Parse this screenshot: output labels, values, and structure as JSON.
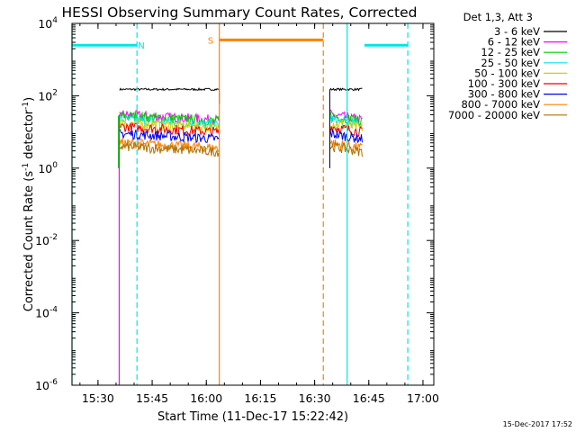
{
  "chart_data": {
    "type": "line",
    "title": "HESSI Observing Summary Count Rates, Corrected",
    "xlabel": "Start Time (11-Dec-17 15:22:42)",
    "ylabel_main": "Corrected Count Rate (s",
    "ylabel_sup1": "-1",
    "ylabel_mid": " detector",
    "ylabel_sup2": "-1",
    "ylabel_end": ")",
    "x_range_minutes": [
      15.38,
      17.05
    ],
    "x_ticks": [
      {
        "t": 15.5,
        "label": "15:30"
      },
      {
        "t": 15.75,
        "label": "15:45"
      },
      {
        "t": 16.0,
        "label": "16:00"
      },
      {
        "t": 16.25,
        "label": "16:15"
      },
      {
        "t": 16.5,
        "label": "16:30"
      },
      {
        "t": 16.75,
        "label": "16:45"
      },
      {
        "t": 17.0,
        "label": "17:00"
      }
    ],
    "y_scale": "log",
    "y_range": [
      1e-06,
      10000.0
    ],
    "y_ticks": [
      {
        "exp": -6,
        "label_base": "10",
        "label_exp": "-6"
      },
      {
        "exp": -4,
        "label_base": "10",
        "label_exp": "-4"
      },
      {
        "exp": -2,
        "label_base": "10",
        "label_exp": "-2"
      },
      {
        "exp": 0,
        "label_base": "10",
        "label_exp": "0"
      },
      {
        "exp": 2,
        "label_base": "10",
        "label_exp": "2"
      },
      {
        "exp": 4,
        "label_base": "10",
        "label_exp": "4"
      }
    ],
    "legend_title": "Det 1,3, Att 3",
    "legend_position": "top-right, outside plot",
    "series": [
      {
        "name": "3 - 6 keV",
        "color": "#000000",
        "level": 150
      },
      {
        "name": "6 - 12 keV",
        "color": "#ff00ff",
        "level": 30
      },
      {
        "name": "12 - 25 keV",
        "color": "#00cc00",
        "level": 28
      },
      {
        "name": "25 - 50 keV",
        "color": "#00e5e5",
        "level": 22
      },
      {
        "name": "50 - 100 keV",
        "color": "#ddcc00",
        "level": 18
      },
      {
        "name": "100 - 300 keV",
        "color": "#ee0000",
        "level": 14
      },
      {
        "name": "300 - 800 keV",
        "color": "#0000ee",
        "level": 9
      },
      {
        "name": "800 - 7000 keV",
        "color": "#ff8000",
        "level": 5
      },
      {
        "name": "7000 - 20000 keV",
        "color": "#b07000",
        "level": 4
      }
    ],
    "data_segments": [
      {
        "start": 15.6,
        "end": 16.06
      },
      {
        "start": 16.57,
        "end": 16.72
      }
    ],
    "flags": [
      {
        "label": "N",
        "color": "#00e5e5",
        "level": 2500,
        "segments": [
          [
            15.38,
            15.68
          ],
          [
            16.73,
            16.93
          ]
        ],
        "vlines_solid": [
          15.38,
          16.65
        ],
        "vlines_dashed": [
          15.68,
          16.93
        ],
        "label_at": 15.7
      },
      {
        "label": "S",
        "color": "#ff8000",
        "level": 3500,
        "segments": [
          [
            16.06,
            16.54
          ]
        ],
        "vlines_solid": [
          16.06
        ],
        "vlines_dashed": [
          16.54
        ],
        "label_at": 16.02
      }
    ],
    "footer_date": "15-Dec-2017 17:52"
  }
}
